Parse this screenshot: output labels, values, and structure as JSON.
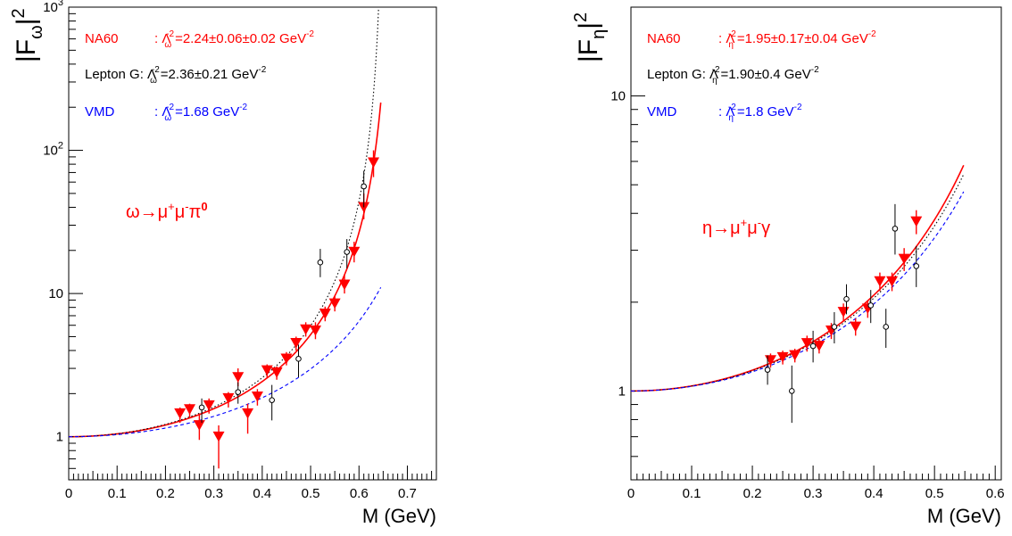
{
  "chart_data": [
    {
      "type": "scatter",
      "panel": "omega",
      "xlabel": "M (GeV)",
      "ylabel": "|F_ω|²",
      "x_ticks": [
        "0",
        "0.1",
        "0.2",
        "0.3",
        "0.4",
        "0.5",
        "0.6",
        "0.7"
      ],
      "y_ticks": [
        {
          "value": 1,
          "label": "1"
        },
        {
          "value": 10,
          "label": "10"
        },
        {
          "value": 100,
          "label": "10²"
        },
        {
          "value": 1000,
          "label": "10³"
        }
      ],
      "xlim": [
        0,
        0.76
      ],
      "ylim": [
        0.5,
        1000
      ],
      "y_log": true,
      "reaction": "ω→μ⁺μ⁻π⁰",
      "legend": [
        {
          "name": "NA60",
          "text": ": Λω⁻² = 2.24±0.06±0.02 GeV⁻²",
          "color": "#ff0000"
        },
        {
          "name": "Lepton G",
          "text": "Lepton G: Λω⁻² = 2.36±0.21 GeV⁻²",
          "color": "#000000"
        },
        {
          "name": "VMD",
          "text": ": Λω⁻² = 1.68 GeV⁻²",
          "color": "#0000ff"
        }
      ],
      "curves": [
        {
          "name": "NA60 fit",
          "color": "#ff0000",
          "style": "solid",
          "lambda2": 2.24,
          "xmax": 0.645
        },
        {
          "name": "Lepton G fit",
          "color": "#000000",
          "style": "dotted",
          "lambda2": 2.36,
          "xmax": 0.645
        },
        {
          "name": "VMD",
          "color": "#0000ff",
          "style": "dashed",
          "lambda2": 1.68,
          "xmax": 0.645
        }
      ],
      "series": [
        {
          "name": "NA60",
          "marker": "triangle-down",
          "color": "#ff0000",
          "points": [
            {
              "x": 0.23,
              "y": 1.45,
              "lo": 1.25,
              "hi": 1.6
            },
            {
              "x": 0.25,
              "y": 1.55,
              "lo": 1.35,
              "hi": 1.7
            },
            {
              "x": 0.27,
              "y": 1.2,
              "lo": 0.95,
              "hi": 1.45
            },
            {
              "x": 0.29,
              "y": 1.65,
              "lo": 1.45,
              "hi": 1.85
            },
            {
              "x": 0.31,
              "y": 1.0,
              "lo": 0.6,
              "hi": 1.2
            },
            {
              "x": 0.33,
              "y": 1.85,
              "lo": 1.6,
              "hi": 2.05
            },
            {
              "x": 0.35,
              "y": 2.6,
              "lo": 2.25,
              "hi": 3.0
            },
            {
              "x": 0.37,
              "y": 1.45,
              "lo": 1.05,
              "hi": 1.7
            },
            {
              "x": 0.39,
              "y": 1.9,
              "lo": 1.65,
              "hi": 2.15
            },
            {
              "x": 0.41,
              "y": 2.9,
              "lo": 2.55,
              "hi": 3.2
            },
            {
              "x": 0.43,
              "y": 2.8,
              "lo": 2.5,
              "hi": 3.1
            },
            {
              "x": 0.45,
              "y": 3.5,
              "lo": 3.15,
              "hi": 3.9
            },
            {
              "x": 0.47,
              "y": 4.5,
              "lo": 4.0,
              "hi": 5.0
            },
            {
              "x": 0.49,
              "y": 5.6,
              "lo": 5.0,
              "hi": 6.3
            },
            {
              "x": 0.51,
              "y": 5.5,
              "lo": 4.8,
              "hi": 6.3
            },
            {
              "x": 0.53,
              "y": 7.2,
              "lo": 6.4,
              "hi": 8.1
            },
            {
              "x": 0.55,
              "y": 8.5,
              "lo": 7.5,
              "hi": 9.6
            },
            {
              "x": 0.57,
              "y": 11.5,
              "lo": 10.0,
              "hi": 13.5
            },
            {
              "x": 0.59,
              "y": 19.5,
              "lo": 16.5,
              "hi": 23.0
            },
            {
              "x": 0.61,
              "y": 40.0,
              "lo": 33.0,
              "hi": 50.0
            },
            {
              "x": 0.63,
              "y": 82.0,
              "lo": 65.0,
              "hi": 100.0
            }
          ]
        },
        {
          "name": "Lepton G",
          "marker": "open-circle",
          "color": "#000000",
          "points": [
            {
              "x": 0.275,
              "y": 1.6,
              "lo": 1.25,
              "hi": 1.85
            },
            {
              "x": 0.35,
              "y": 2.05,
              "lo": 1.7,
              "hi": 2.4
            },
            {
              "x": 0.42,
              "y": 1.8,
              "lo": 1.3,
              "hi": 2.3
            },
            {
              "x": 0.475,
              "y": 3.5,
              "lo": 2.6,
              "hi": 4.4
            },
            {
              "x": 0.52,
              "y": 16.5,
              "lo": 13.0,
              "hi": 20.5
            },
            {
              "x": 0.575,
              "y": 19.5,
              "lo": 15.0,
              "hi": 24.0
            },
            {
              "x": 0.61,
              "y": 56.0,
              "lo": 40.0,
              "hi": 72.0
            }
          ]
        }
      ]
    },
    {
      "type": "scatter",
      "panel": "eta",
      "xlabel": "M (GeV)",
      "ylabel": "|F_η|²",
      "x_ticks": [
        "0",
        "0.1",
        "0.2",
        "0.3",
        "0.4",
        "0.5",
        "0.6"
      ],
      "y_ticks": [
        {
          "value": 1,
          "label": "1"
        },
        {
          "value": 10,
          "label": "10"
        }
      ],
      "xlim": [
        0,
        0.61
      ],
      "ylim": [
        0.5,
        20
      ],
      "y_log": true,
      "reaction": "η→μ⁺μ⁻γ",
      "legend": [
        {
          "name": "NA60",
          "text": ": Λη⁻² = 1.95±0.17±0.04GeV⁻²",
          "color": "#ff0000"
        },
        {
          "name": "Lepton G",
          "text": "Lepton G: Λη⁻² = 1.90±0.4 GeV⁻²",
          "color": "#000000"
        },
        {
          "name": "VMD",
          "text": ": Λη⁻² = 1.8 GeV⁻²",
          "color": "#0000ff"
        }
      ],
      "curves": [
        {
          "name": "NA60 fit",
          "color": "#ff0000",
          "style": "solid",
          "lambda2": 1.95,
          "xmax": 0.548
        },
        {
          "name": "Lepton G fit",
          "color": "#000000",
          "style": "dotted",
          "lambda2": 1.9,
          "xmax": 0.548
        },
        {
          "name": "VMD",
          "color": "#0000ff",
          "style": "dashed",
          "lambda2": 1.8,
          "xmax": 0.548
        }
      ],
      "series": [
        {
          "name": "NA60",
          "marker": "triangle-down",
          "color": "#ff0000",
          "points": [
            {
              "x": 0.23,
              "y": 1.27,
              "lo": 1.2,
              "hi": 1.34
            },
            {
              "x": 0.25,
              "y": 1.3,
              "lo": 1.23,
              "hi": 1.37
            },
            {
              "x": 0.27,
              "y": 1.32,
              "lo": 1.25,
              "hi": 1.39
            },
            {
              "x": 0.29,
              "y": 1.45,
              "lo": 1.36,
              "hi": 1.54
            },
            {
              "x": 0.31,
              "y": 1.42,
              "lo": 1.34,
              "hi": 1.5
            },
            {
              "x": 0.33,
              "y": 1.6,
              "lo": 1.5,
              "hi": 1.7
            },
            {
              "x": 0.35,
              "y": 1.85,
              "lo": 1.72,
              "hi": 1.98
            },
            {
              "x": 0.37,
              "y": 1.65,
              "lo": 1.54,
              "hi": 1.76
            },
            {
              "x": 0.39,
              "y": 1.9,
              "lo": 1.77,
              "hi": 2.03
            },
            {
              "x": 0.41,
              "y": 2.35,
              "lo": 2.18,
              "hi": 2.52
            },
            {
              "x": 0.43,
              "y": 2.35,
              "lo": 2.18,
              "hi": 2.52
            },
            {
              "x": 0.45,
              "y": 2.8,
              "lo": 2.55,
              "hi": 3.05
            },
            {
              "x": 0.47,
              "y": 3.75,
              "lo": 3.4,
              "hi": 4.1
            }
          ]
        },
        {
          "name": "Lepton G",
          "marker": "open-circle",
          "color": "#000000",
          "points": [
            {
              "x": 0.225,
              "y": 1.18,
              "lo": 1.05,
              "hi": 1.32
            },
            {
              "x": 0.265,
              "y": 1.0,
              "lo": 0.78,
              "hi": 1.22
            },
            {
              "x": 0.3,
              "y": 1.42,
              "lo": 1.25,
              "hi": 1.6
            },
            {
              "x": 0.335,
              "y": 1.65,
              "lo": 1.45,
              "hi": 1.85
            },
            {
              "x": 0.355,
              "y": 2.05,
              "lo": 1.82,
              "hi": 2.3
            },
            {
              "x": 0.395,
              "y": 1.95,
              "lo": 1.7,
              "hi": 2.2
            },
            {
              "x": 0.42,
              "y": 1.65,
              "lo": 1.4,
              "hi": 1.9
            },
            {
              "x": 0.435,
              "y": 3.55,
              "lo": 2.9,
              "hi": 4.3
            },
            {
              "x": 0.47,
              "y": 2.65,
              "lo": 2.25,
              "hi": 3.1
            }
          ]
        }
      ]
    }
  ]
}
